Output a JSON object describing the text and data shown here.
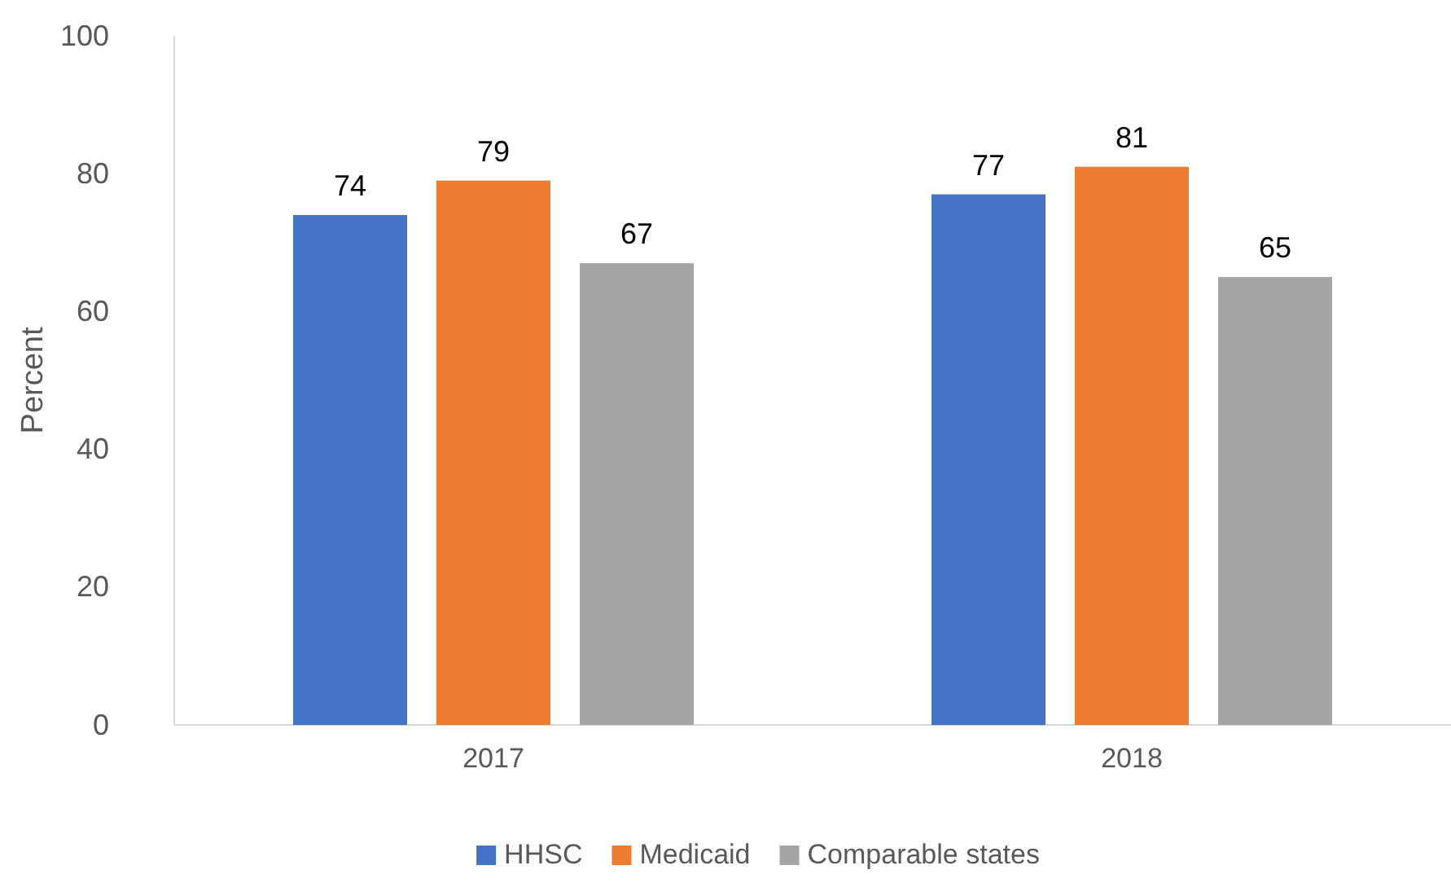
{
  "chart_data": {
    "type": "bar",
    "ylabel": "Percent",
    "categories": [
      "2017",
      "2018"
    ],
    "series": [
      {
        "name": "HHSC",
        "color": "#4472c4",
        "values": [
          74,
          77
        ]
      },
      {
        "name": "Medicaid",
        "color": "#ed7d31",
        "values": [
          79,
          81
        ]
      },
      {
        "name": "Comparable states",
        "color": "#a5a5a5",
        "values": [
          67,
          65
        ]
      }
    ],
    "ylim": [
      0,
      100
    ],
    "yticks": [
      0,
      20,
      40,
      60,
      80,
      100
    ],
    "grid": false,
    "legend": "bottom",
    "data_labels": true
  }
}
